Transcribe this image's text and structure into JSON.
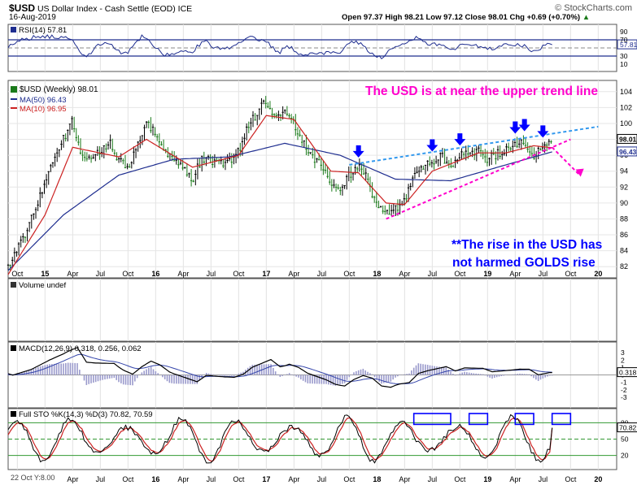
{
  "header": {
    "symbol": "$USD",
    "name": "US Dollar Index - Cash Settle (EOD)",
    "exchange": "ICE",
    "date": "16-Aug-2019",
    "ohlc": "Open 97.37  High 98.21  Low 97.12  Close 98.01  Chg +0.69 (+0.70%)",
    "chg_arrow": "▲",
    "watermark": "© StockCharts.com"
  },
  "footer": {
    "left": "22 Oct Y:8.00"
  },
  "colors": {
    "price": "#1a7a1a",
    "ma50": "#1e2d8f",
    "ma10": "#cc2222",
    "annotation_magenta": "#ff00cc",
    "annotation_blue": "#0000ff",
    "rsi": "#1e2d8f",
    "macd_hist": "#9a9acc",
    "percent_k": "#000000",
    "percent_d": "#cc2222",
    "trend_upper": "#3399ee"
  },
  "annotations": {
    "top": "The USD is at near the upper trend line",
    "bottom_line1": "**The rise in the USD has",
    "bottom_line2": "not harmed GOLDS rise"
  },
  "chart_data": [
    {
      "type": "line",
      "panel": "rsi",
      "title": "RSI(14) 57.81",
      "ylim": [
        0,
        100
      ],
      "y_ticks": [
        10,
        30,
        57.81,
        70,
        90
      ],
      "levels": [
        30,
        70
      ],
      "last_value": 57.81
    },
    {
      "type": "line",
      "panel": "price",
      "title": "$USD (Weekly) 98.01",
      "legend": [
        "MA(50) 96.43",
        "MA(10) 96.95"
      ],
      "x_ticks": [
        "Oct",
        "15",
        "Apr",
        "Jul",
        "Oct",
        "16",
        "Apr",
        "Jul",
        "Oct",
        "17",
        "Apr",
        "Jul",
        "Oct",
        "18",
        "Apr",
        "Jul",
        "Oct",
        "19",
        "Apr",
        "Jul",
        "Oct",
        "20"
      ],
      "ylim": [
        81,
        105
      ],
      "y_ticks": [
        82,
        84,
        86,
        88,
        90,
        92,
        94,
        96,
        98,
        100,
        102,
        104
      ],
      "y_label_extra": [
        "98.01",
        "96.43"
      ],
      "x_start": "2014-09",
      "close_points": [
        {
          "x": "2014-09",
          "y": 82.0
        },
        {
          "x": "2014-11",
          "y": 86.5
        },
        {
          "x": "2015-01",
          "y": 92.5
        },
        {
          "x": "2015-03",
          "y": 98.0
        },
        {
          "x": "2015-04",
          "y": 100.3
        },
        {
          "x": "2015-05",
          "y": 95.5
        },
        {
          "x": "2015-06",
          "y": 96.0
        },
        {
          "x": "2015-08",
          "y": 97.5
        },
        {
          "x": "2015-09",
          "y": 95.5
        },
        {
          "x": "2015-10",
          "y": 94.3
        },
        {
          "x": "2015-11",
          "y": 97.5
        },
        {
          "x": "2015-12",
          "y": 100.0
        },
        {
          "x": "2016-01",
          "y": 98.8
        },
        {
          "x": "2016-02",
          "y": 96.5
        },
        {
          "x": "2016-05",
          "y": 93.0
        },
        {
          "x": "2016-06",
          "y": 95.5
        },
        {
          "x": "2016-08",
          "y": 95.0
        },
        {
          "x": "2016-09",
          "y": 95.0
        },
        {
          "x": "2016-10",
          "y": 96.5
        },
        {
          "x": "2016-11",
          "y": 99.5
        },
        {
          "x": "2017-01",
          "y": 103.0
        },
        {
          "x": "2017-02",
          "y": 100.5
        },
        {
          "x": "2017-03",
          "y": 101.5
        },
        {
          "x": "2017-04",
          "y": 100.0
        },
        {
          "x": "2017-05",
          "y": 97.5
        },
        {
          "x": "2017-07",
          "y": 94.5
        },
        {
          "x": "2017-08",
          "y": 92.5
        },
        {
          "x": "2017-09",
          "y": 91.5
        },
        {
          "x": "2017-10",
          "y": 93.5
        },
        {
          "x": "2017-11",
          "y": 94.5
        },
        {
          "x": "2017-12",
          "y": 93.0
        },
        {
          "x": "2018-01",
          "y": 89.5
        },
        {
          "x": "2018-02",
          "y": 88.5
        },
        {
          "x": "2018-03",
          "y": 89.5
        },
        {
          "x": "2018-04",
          "y": 90.0
        },
        {
          "x": "2018-05",
          "y": 93.5
        },
        {
          "x": "2018-06",
          "y": 94.5
        },
        {
          "x": "2018-08",
          "y": 96.0
        },
        {
          "x": "2018-09",
          "y": 94.5
        },
        {
          "x": "2018-10",
          "y": 96.0
        },
        {
          "x": "2018-12",
          "y": 96.5
        },
        {
          "x": "2019-01",
          "y": 95.5
        },
        {
          "x": "2019-03",
          "y": 96.8
        },
        {
          "x": "2019-04",
          "y": 97.5
        },
        {
          "x": "2019-05",
          "y": 97.8
        },
        {
          "x": "2019-06",
          "y": 96.0
        },
        {
          "x": "2019-07",
          "y": 97.0
        },
        {
          "x": "2019-08",
          "y": 98.01
        }
      ],
      "ma50_points": [
        {
          "x": "2014-09",
          "y": 81.5
        },
        {
          "x": "2015-03",
          "y": 88.5
        },
        {
          "x": "2015-09",
          "y": 93.5
        },
        {
          "x": "2016-03",
          "y": 95.5
        },
        {
          "x": "2016-09",
          "y": 95.8
        },
        {
          "x": "2017-03",
          "y": 97.5
        },
        {
          "x": "2017-09",
          "y": 96.0
        },
        {
          "x": "2018-03",
          "y": 93.0
        },
        {
          "x": "2018-09",
          "y": 92.8
        },
        {
          "x": "2019-03",
          "y": 94.8
        },
        {
          "x": "2019-08",
          "y": 96.43
        }
      ],
      "ma10_points": [
        {
          "x": "2014-09",
          "y": 81.0
        },
        {
          "x": "2015-01",
          "y": 88.5
        },
        {
          "x": "2015-04",
          "y": 97.0
        },
        {
          "x": "2015-09",
          "y": 95.8
        },
        {
          "x": "2015-12",
          "y": 98.0
        },
        {
          "x": "2016-05",
          "y": 94.5
        },
        {
          "x": "2016-10",
          "y": 96.0
        },
        {
          "x": "2017-01",
          "y": 101.0
        },
        {
          "x": "2017-04",
          "y": 100.5
        },
        {
          "x": "2017-08",
          "y": 94.0
        },
        {
          "x": "2017-11",
          "y": 93.8
        },
        {
          "x": "2018-02",
          "y": 90.0
        },
        {
          "x": "2018-04",
          "y": 89.8
        },
        {
          "x": "2018-07",
          "y": 94.0
        },
        {
          "x": "2018-12",
          "y": 96.3
        },
        {
          "x": "2019-03",
          "y": 96.3
        },
        {
          "x": "2019-06",
          "y": 97.2
        },
        {
          "x": "2019-08",
          "y": 96.95
        }
      ],
      "trend_upper": [
        {
          "x": "2017-10",
          "y": 94.8
        },
        {
          "x": "2020-01",
          "y": 99.6
        }
      ],
      "trend_lower": [
        {
          "x": "2018-02",
          "y": 88.0
        },
        {
          "x": "2019-10",
          "y": 98.0
        }
      ],
      "projected_drop": [
        {
          "x": "2019-08",
          "y": 97.0
        },
        {
          "x": "2019-11",
          "y": 93.5
        }
      ],
      "marker_arrows": [
        "2017-11",
        "2018-07",
        "2018-10",
        "2019-04",
        "2019-05",
        "2019-07"
      ]
    },
    {
      "type": "bar",
      "panel": "volume",
      "title": "Volume undef"
    },
    {
      "type": "line",
      "panel": "macd",
      "title": "MACD(12,26,9) 0.318, 0.256, 0.062",
      "ylim": [
        -4,
        4
      ],
      "y_ticks": [
        -3,
        -2,
        -1,
        0,
        1,
        2,
        3
      ],
      "y_label_extra": [
        "0.318"
      ],
      "last_values": [
        0.318,
        0.256,
        0.062
      ]
    },
    {
      "type": "line",
      "panel": "stochastic",
      "title": "Full STO %K(14,3) %D(3) 70.82, 70.59",
      "ylim": [
        0,
        100
      ],
      "y_ticks": [
        20,
        50,
        80
      ],
      "y_label_extra": [
        "70.82"
      ],
      "levels": [
        20,
        50,
        80
      ],
      "last_values": [
        70.82,
        70.59
      ],
      "x_ticks": [
        "Apr",
        "Jul",
        "Oct",
        "16",
        "Apr",
        "Jul",
        "Oct",
        "17",
        "Apr",
        "Jul",
        "Oct",
        "18",
        "Apr",
        "Jul",
        "Oct",
        "19",
        "Apr",
        "Jul",
        "Oct",
        "20"
      ],
      "highlight_boxes": [
        [
          "2018-05",
          "2018-08"
        ],
        [
          "2018-11",
          "2018-12"
        ],
        [
          "2019-04",
          "2019-05"
        ],
        [
          "2019-08",
          "2019-09"
        ]
      ]
    }
  ]
}
